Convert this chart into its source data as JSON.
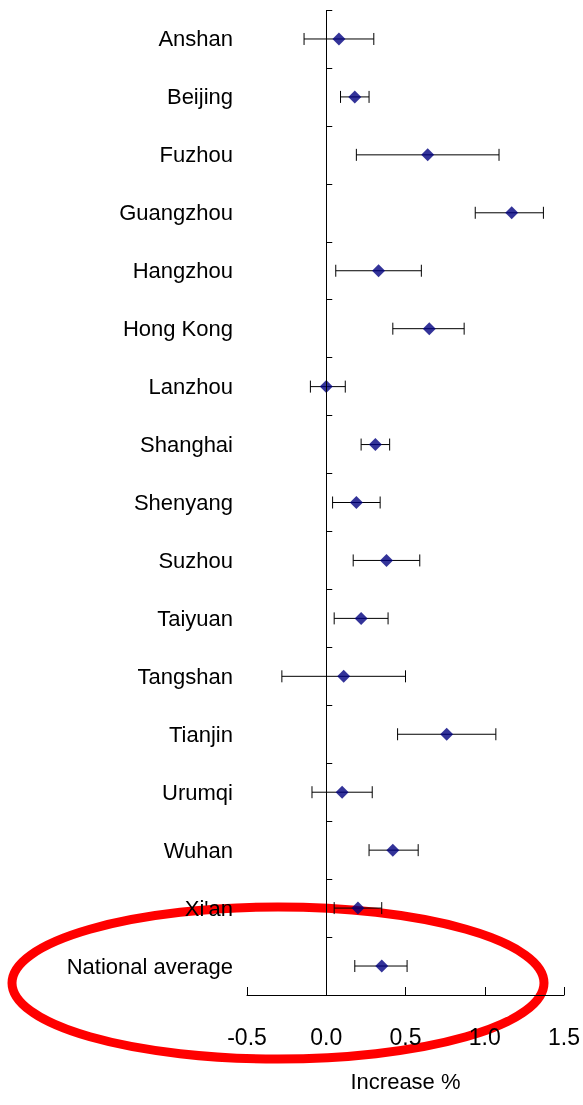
{
  "chart_data": {
    "type": "scatter",
    "orientation": "horizontal",
    "xlabel": "Increase %",
    "categories": [
      "Anshan",
      "Beijing",
      "Fuzhou",
      "Guangzhou",
      "Hangzhou",
      "Hong Kong",
      "Lanzhou",
      "Shanghai",
      "Shenyang",
      "Suzhou",
      "Taiyuan",
      "Tangshan",
      "Tianjin",
      "Urumqi",
      "Wuhan",
      "Xi'an",
      "National average"
    ],
    "series": [
      {
        "color": "#000080",
        "values": [
          0.08,
          0.18,
          0.64,
          1.17,
          0.33,
          0.65,
          0.0,
          0.31,
          0.19,
          0.38,
          0.22,
          0.11,
          0.76,
          0.1,
          0.42,
          0.2,
          0.35
        ],
        "errors": [
          [
            -0.14,
            0.3
          ],
          [
            0.09,
            0.27
          ],
          [
            0.19,
            1.09
          ],
          [
            0.94,
            1.37
          ],
          [
            0.06,
            0.6
          ],
          [
            0.42,
            0.87
          ],
          [
            -0.1,
            0.12
          ],
          [
            0.22,
            0.4
          ],
          [
            0.04,
            0.34
          ],
          [
            0.17,
            0.59
          ],
          [
            0.05,
            0.39
          ],
          [
            -0.28,
            0.5
          ],
          [
            0.45,
            1.07
          ],
          [
            -0.09,
            0.29
          ],
          [
            0.27,
            0.58
          ],
          [
            0.05,
            0.35
          ],
          [
            0.18,
            0.51
          ]
        ]
      }
    ],
    "xlim": [
      -0.5,
      1.5
    ],
    "xticks": [
      {
        "value": -0.5,
        "label": "-0.5"
      },
      {
        "value": 0,
        "label": "0.0"
      },
      {
        "value": 0.5,
        "label": "0.5"
      },
      {
        "value": 1,
        "label": "1.0"
      },
      {
        "value": 1.5,
        "label": "1.5"
      }
    ],
    "ref_lines": [
      {
        "axis": "x",
        "value": 0,
        "color": "#000000"
      }
    ],
    "marker": "diamond",
    "grid": false
  }
}
